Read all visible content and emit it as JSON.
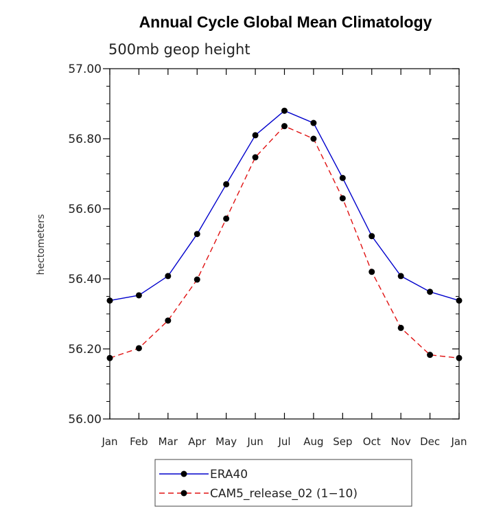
{
  "chart_data": {
    "type": "line",
    "title": "Annual Cycle Global Mean Climatology",
    "subtitle": "500mb geop height",
    "xlabel": "",
    "ylabel": "hectometers",
    "categories": [
      "Jan",
      "Feb",
      "Mar",
      "Apr",
      "May",
      "Jun",
      "Jul",
      "Aug",
      "Sep",
      "Oct",
      "Nov",
      "Dec",
      "Jan"
    ],
    "ylim": [
      56.0,
      57.0
    ],
    "yticks": [
      "56.00",
      "56.20",
      "56.40",
      "56.60",
      "56.80",
      "57.00"
    ],
    "grid": false,
    "legend_position": "bottom-center",
    "series": [
      {
        "name": "ERA40",
        "color": "#0000cc",
        "line_style": "solid",
        "marker": "filled-circle",
        "values": [
          56.338,
          56.353,
          56.408,
          56.528,
          56.67,
          56.81,
          56.88,
          56.845,
          56.688,
          56.522,
          56.408,
          56.363,
          56.338
        ]
      },
      {
        "name": "CAM5_release_02 (1−10)",
        "color": "#e01010",
        "line_style": "dashed",
        "marker": "filled-circle",
        "values": [
          56.174,
          56.202,
          56.281,
          56.398,
          56.572,
          56.747,
          56.836,
          56.8,
          56.63,
          56.42,
          56.26,
          56.183,
          56.174
        ]
      }
    ]
  }
}
